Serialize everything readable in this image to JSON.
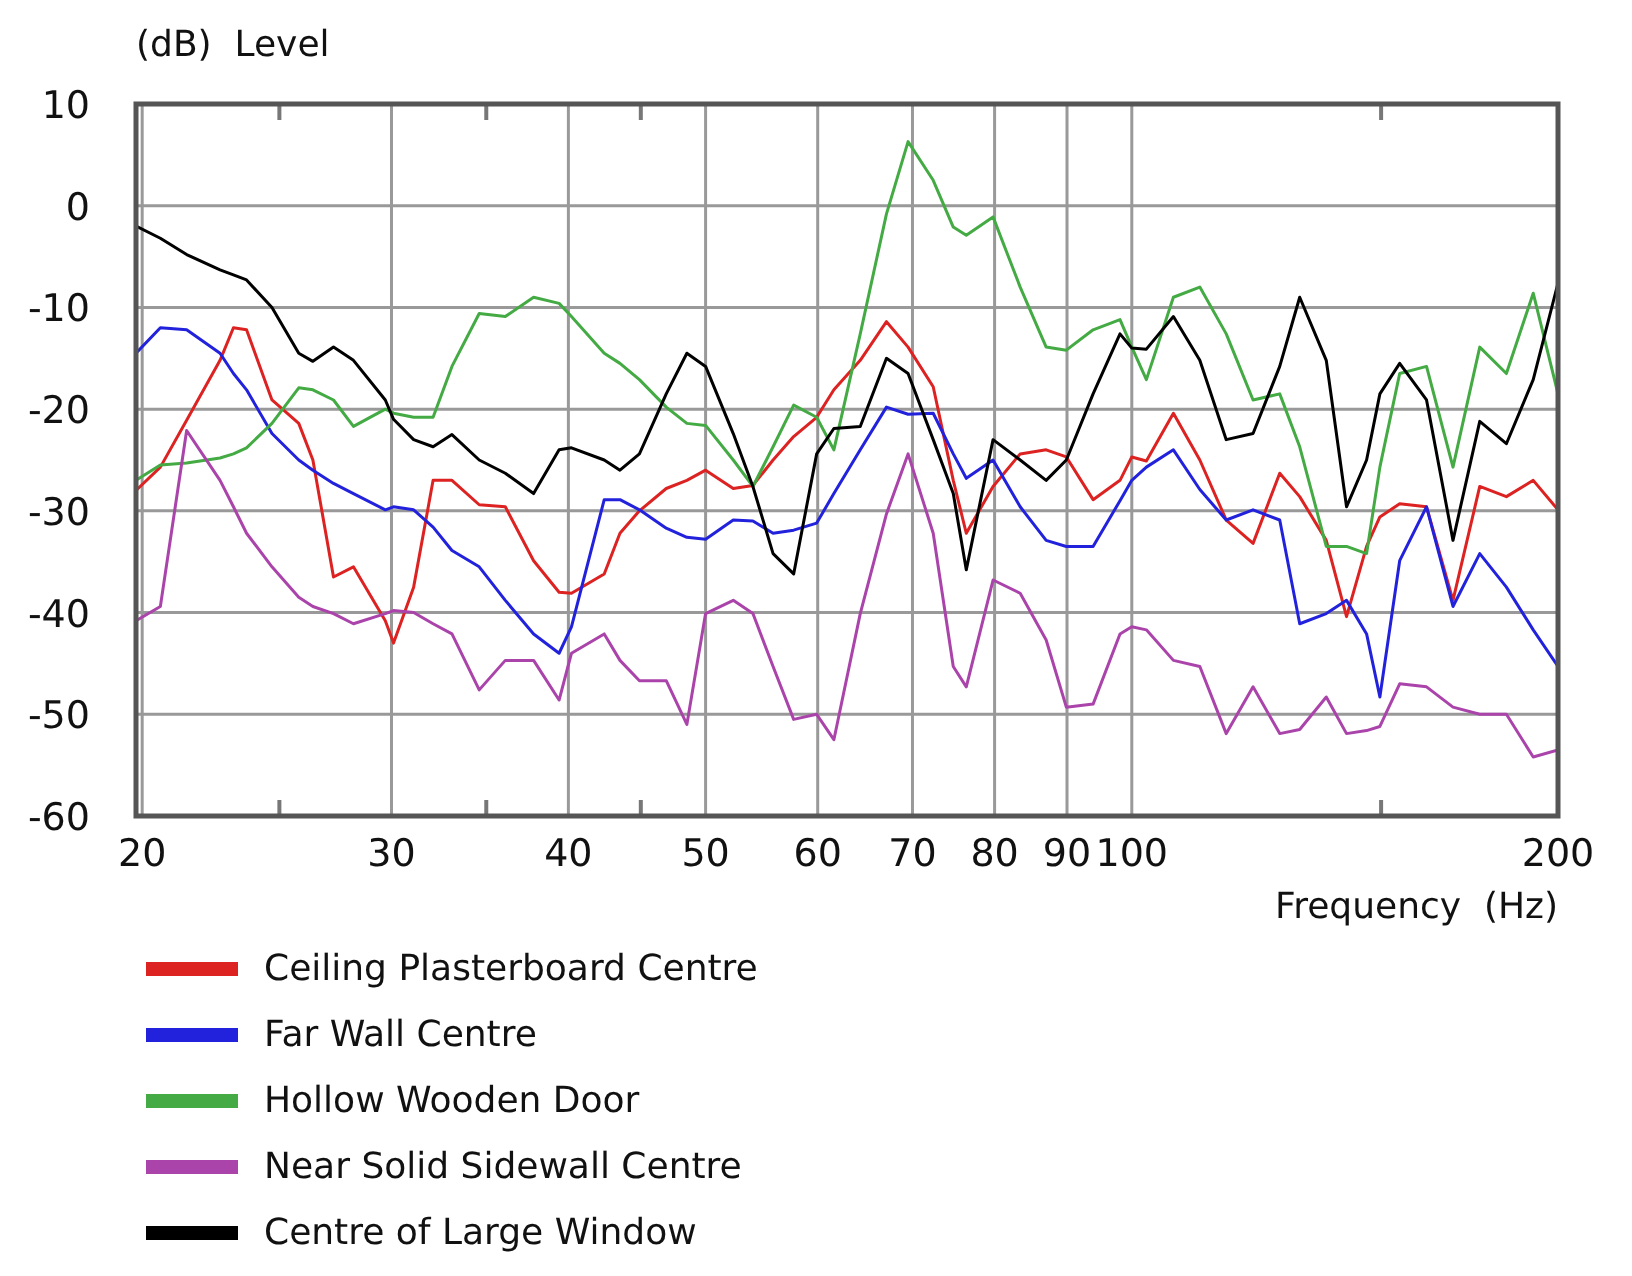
{
  "chart_data": {
    "type": "line",
    "ylabel": "(dB)  Level",
    "xlabel": "Frequency  (Hz)",
    "log": "x",
    "grid": true,
    "legend": "bottom",
    "line_style": "solid",
    "marker": "none",
    "xlim": [
      19.8,
      200
    ],
    "xticks": [
      20,
      {
        "value": 25,
        "label": null
      },
      30,
      {
        "value": 35,
        "label": null
      },
      40,
      {
        "value": 45,
        "label": null
      },
      50,
      60,
      70,
      80,
      90,
      100,
      {
        "value": 150,
        "label": null
      },
      200
    ],
    "ylim": [
      -60,
      10
    ],
    "yticks": [
      10,
      0,
      -10,
      -20,
      -30,
      -40,
      -50,
      -60
    ],
    "x": [
      19.8,
      20.6,
      21.5,
      22.7,
      23.2,
      23.7,
      24.7,
      25.8,
      26.4,
      27.3,
      28.2,
      29.7,
      30.1,
      31.1,
      32.1,
      33.1,
      34.6,
      36.1,
      37.8,
      39.4,
      40.2,
      42.4,
      43.5,
      44.9,
      46.9,
      48.5,
      50,
      52.3,
      54,
      55.8,
      57.7,
      59.9,
      61.6,
      64.3,
      67.1,
      69.5,
      72.4,
      74.8,
      76.4,
      79.8,
      83.4,
      87,
      89.9,
      93.9,
      98.1,
      100,
      102.4,
      107,
      111.7,
      116.6,
      121.8,
      127.2,
      131.4,
      137.2,
      141.8,
      146.5,
      149.7,
      154.6,
      161.5,
      168.6,
      176.1,
      183.9,
      192.1,
      200
    ],
    "series": [
      {
        "name": "Ceiling Plasterboard Centre",
        "color": "#dd2222",
        "values": [
          -28,
          -25.7,
          -21.1,
          -15.2,
          -12,
          -12.2,
          -19.1,
          -21.4,
          -25,
          -36.5,
          -35.5,
          -40.8,
          -43,
          -37.5,
          -27,
          -27,
          -29.4,
          -29.6,
          -34.9,
          -38,
          -38.1,
          -36.2,
          -32.2,
          -30,
          -27.8,
          -27,
          -26,
          -27.8,
          -27.5,
          -25,
          -22.7,
          -20.8,
          -18.1,
          -15.2,
          -11.4,
          -13.9,
          -17.8,
          -27,
          -32.2,
          -27.6,
          -24.4,
          -24,
          -24.7,
          -28.9,
          -27,
          -24.7,
          -25.1,
          -20.4,
          -25,
          -30.9,
          -33.2,
          -26.3,
          -28.6,
          -32.9,
          -40.4,
          -33.5,
          -30.6,
          -29.3,
          -29.6,
          -38.8,
          -27.6,
          -28.6,
          -27,
          -29.9
        ]
      },
      {
        "name": "Far Wall Centre",
        "color": "#2222dd",
        "values": [
          -14.5,
          -12,
          -12.2,
          -14.5,
          -16.5,
          -18.1,
          -22.4,
          -25,
          -26,
          -27.3,
          -28.3,
          -29.9,
          -29.6,
          -29.9,
          -31.6,
          -33.9,
          -35.5,
          -38.8,
          -42.1,
          -44,
          -41.4,
          -28.9,
          -28.9,
          -29.9,
          -31.7,
          -32.6,
          -32.8,
          -30.9,
          -31,
          -32.2,
          -31.9,
          -31.2,
          -28.3,
          -24,
          -19.8,
          -20.5,
          -20.4,
          -24.4,
          -26.8,
          -25,
          -29.6,
          -32.9,
          -33.5,
          -33.5,
          -29,
          -27,
          -25.7,
          -24,
          -27.9,
          -30.9,
          -29.9,
          -30.9,
          -41.1,
          -40.1,
          -38.8,
          -42.1,
          -48.3,
          -34.9,
          -29.6,
          -39.4,
          -34.2,
          -37.5,
          -41.7,
          -45.3
        ]
      },
      {
        "name": "Hollow Wooden Door",
        "color": "#44aa44",
        "values": [
          -27,
          -25.5,
          -25.3,
          -24.8,
          -24.4,
          -23.8,
          -21.4,
          -17.9,
          -18.1,
          -19.1,
          -21.7,
          -20,
          -20.4,
          -20.8,
          -20.8,
          -15.8,
          -10.6,
          -10.9,
          -9,
          -9.6,
          -10.9,
          -14.5,
          -15.5,
          -17.1,
          -19.8,
          -21.4,
          -21.6,
          -25,
          -27.6,
          -23.7,
          -19.6,
          -20.8,
          -24,
          -12.6,
          -0.8,
          6.3,
          2.5,
          -2.1,
          -2.9,
          -1.1,
          -8,
          -13.9,
          -14.2,
          -12.2,
          -11.2,
          -13.9,
          -17.1,
          -9,
          -8,
          -12.6,
          -19.1,
          -18.5,
          -23.7,
          -33.5,
          -33.5,
          -34.2,
          -25.7,
          -16.5,
          -15.8,
          -25.7,
          -13.9,
          -16.5,
          -8.6,
          -18.5
        ]
      },
      {
        "name": "Near Solid Sidewall Centre",
        "color": "#aa44aa",
        "values": [
          -40.8,
          -39.4,
          -22.1,
          -27,
          -29.6,
          -32.2,
          -35.5,
          -38.5,
          -39.4,
          -40.1,
          -41.1,
          -40.1,
          -39.8,
          -40,
          -41.1,
          -42.1,
          -47.6,
          -44.7,
          -44.7,
          -48.6,
          -44,
          -42.1,
          -44.7,
          -46.7,
          -46.7,
          -51,
          -40.1,
          -38.8,
          -40.1,
          -45.3,
          -50.5,
          -50,
          -52.5,
          -40.1,
          -30.3,
          -24.4,
          -32.2,
          -45.3,
          -47.3,
          -36.8,
          -38.1,
          -42.7,
          -49.3,
          -49,
          -42.1,
          -41.4,
          -41.7,
          -44.7,
          -45.3,
          -51.9,
          -47.3,
          -51.9,
          -51.5,
          -48.3,
          -51.9,
          -51.6,
          -51.2,
          -47,
          -47.3,
          -49.3,
          -50,
          -50,
          -54.2,
          -53.5
        ]
      },
      {
        "name": "Centre of Large Window",
        "color": "#000000",
        "values": [
          -2,
          -3.2,
          -4.8,
          -6.3,
          -6.8,
          -7.3,
          -10,
          -14.5,
          -15.3,
          -13.9,
          -15.2,
          -19.1,
          -21,
          -23,
          -23.7,
          -22.5,
          -25,
          -26.3,
          -28.3,
          -24,
          -23.8,
          -25,
          -26,
          -24.4,
          -18.5,
          -14.5,
          -15.8,
          -22.4,
          -27.6,
          -34.2,
          -36.2,
          -24.4,
          -21.9,
          -21.7,
          -15,
          -16.5,
          -23,
          -28.3,
          -35.8,
          -23,
          -25,
          -27,
          -25,
          -18.5,
          -12.6,
          -14,
          -14.1,
          -10.9,
          -15.2,
          -23,
          -22.4,
          -15.8,
          -9,
          -15.2,
          -29.6,
          -25,
          -18.5,
          -15.5,
          -19.1,
          -32.9,
          -21.2,
          -23.4,
          -17.1,
          -7.6
        ]
      }
    ]
  }
}
